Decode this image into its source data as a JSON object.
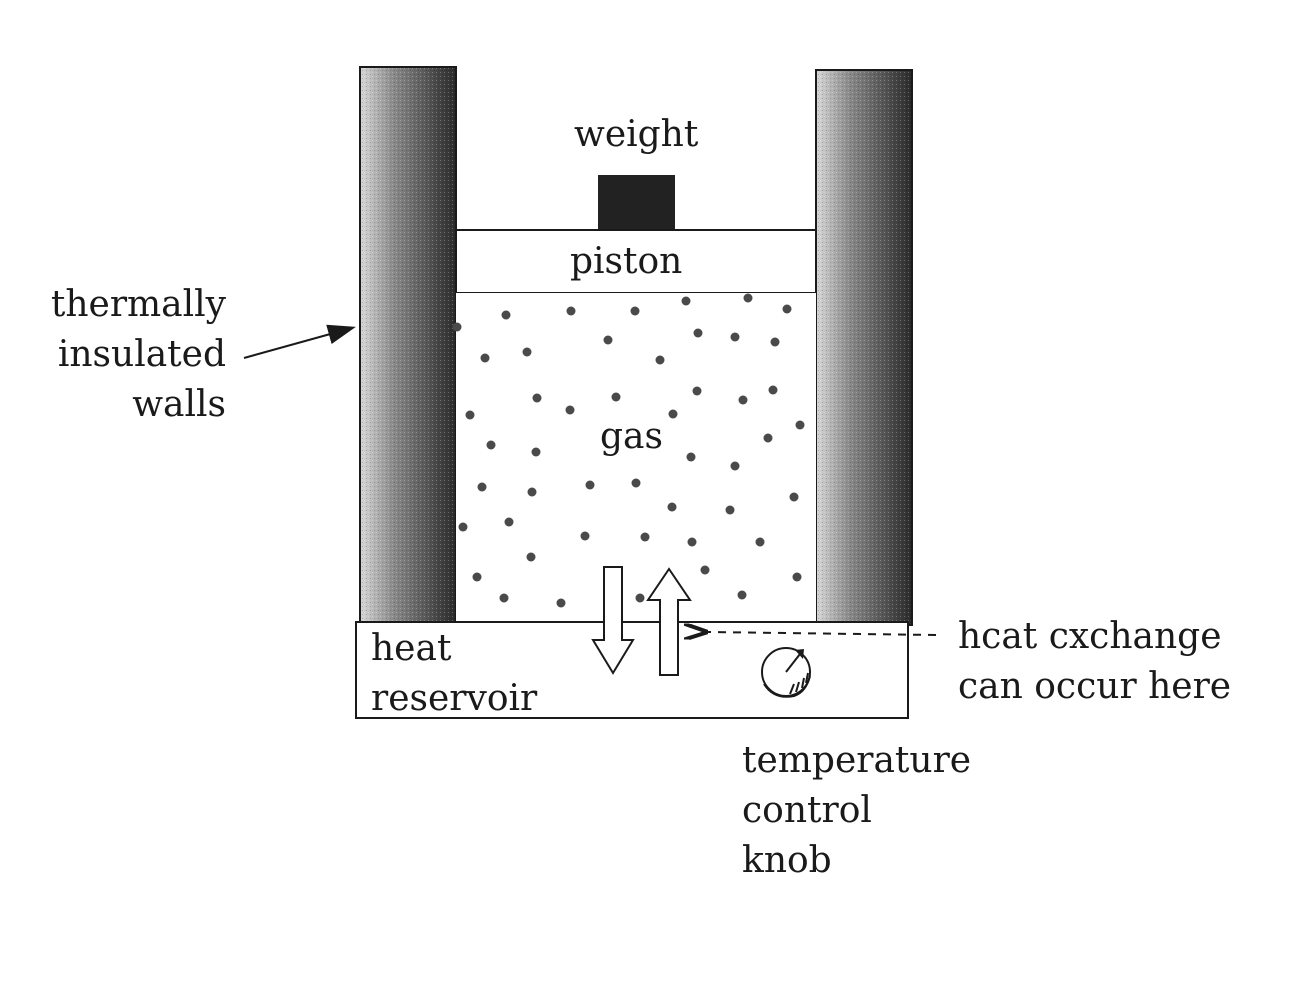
{
  "labels": {
    "weight": "weight",
    "piston": "piston",
    "gas": "gas",
    "walls": [
      "thermally",
      "insulated",
      "walls"
    ],
    "reservoir": [
      "heat",
      "reservoir"
    ],
    "exchange": [
      "hcat cxchange",
      "can occur here"
    ],
    "knob": [
      "temperature",
      "control",
      "knob"
    ]
  },
  "colors": {
    "ink": "#1a1a1a",
    "weight_fill": "#222222",
    "particle": "#4a4a4a"
  }
}
